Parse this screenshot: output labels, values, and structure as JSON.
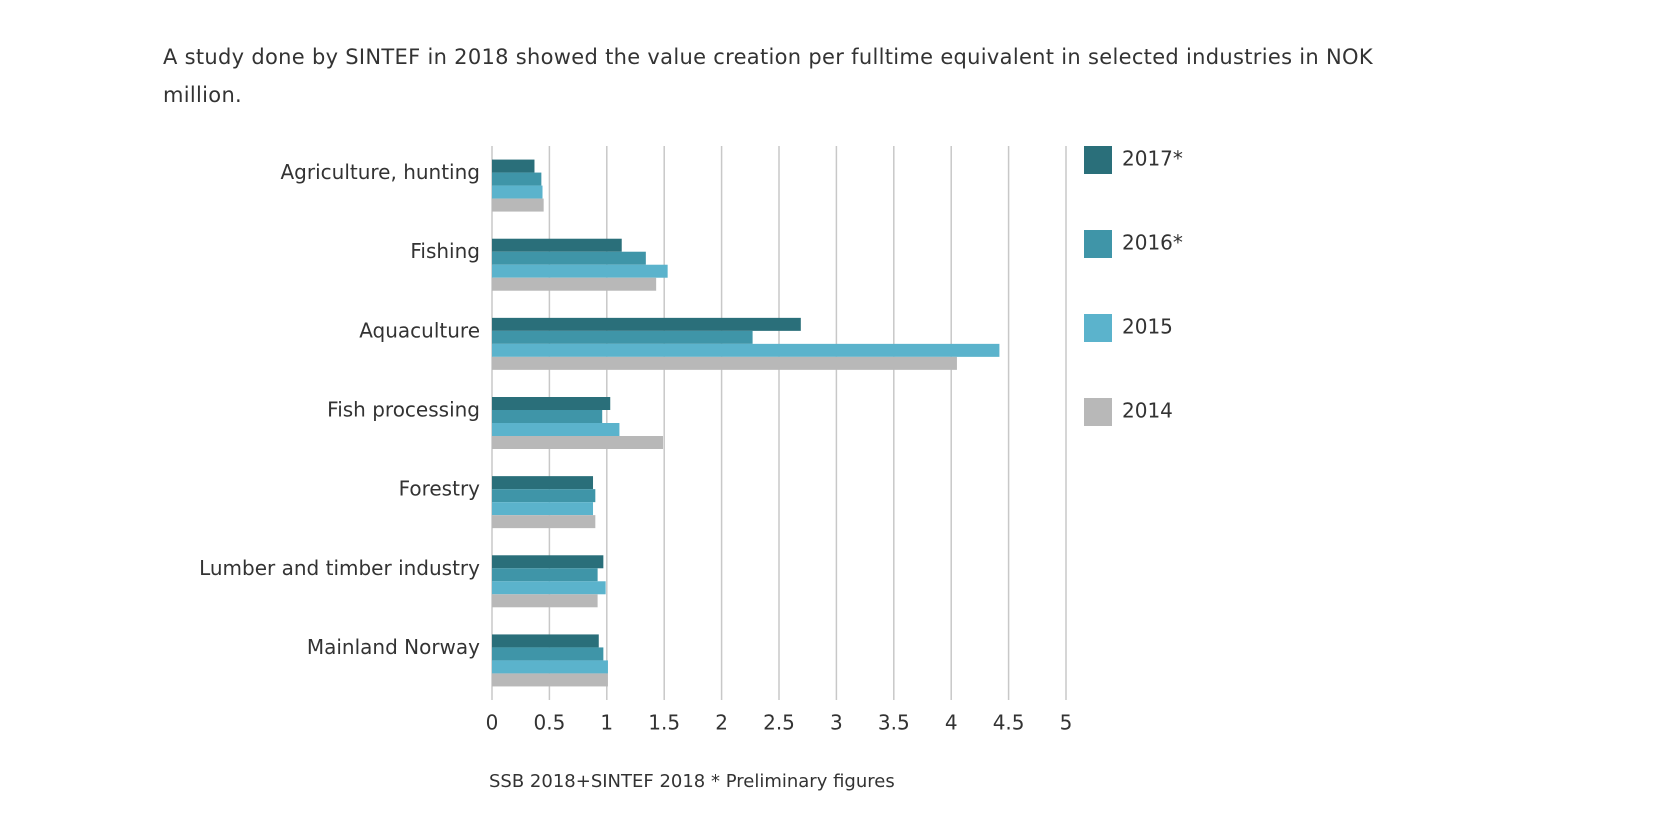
{
  "chart_data": {
    "type": "bar",
    "orientation": "horizontal",
    "title": "A study done by SINTEF in 2018 showed the value creation per fulltime equivalent in selected industries in NOK million.",
    "source": "SSB 2018+SINTEF 2018 * Preliminary figures",
    "categories": [
      "Agriculture, hunting",
      "Fishing",
      "Aquaculture",
      "Fish processing",
      "Forestry",
      "Lumber and timber industry",
      "Mainland Norway"
    ],
    "series": [
      {
        "name": "2017*",
        "color": "#2a6f7a",
        "values": [
          0.37,
          1.13,
          2.69,
          1.03,
          0.88,
          0.97,
          0.93
        ]
      },
      {
        "name": "2016*",
        "color": "#3f95a8",
        "values": [
          0.43,
          1.34,
          2.27,
          0.96,
          0.9,
          0.92,
          0.97
        ]
      },
      {
        "name": "2015",
        "color": "#5bb3cc",
        "values": [
          0.44,
          1.53,
          4.42,
          1.11,
          0.88,
          0.99,
          1.01
        ]
      },
      {
        "name": "2014",
        "color": "#b8b8b8",
        "values": [
          0.45,
          1.43,
          4.05,
          1.49,
          0.9,
          0.92,
          1.01
        ]
      }
    ],
    "xlim": [
      0,
      5
    ],
    "xticks": [
      0,
      0.5,
      1,
      1.5,
      2,
      2.5,
      3,
      3.5,
      4,
      4.5,
      5
    ],
    "grid": true
  }
}
